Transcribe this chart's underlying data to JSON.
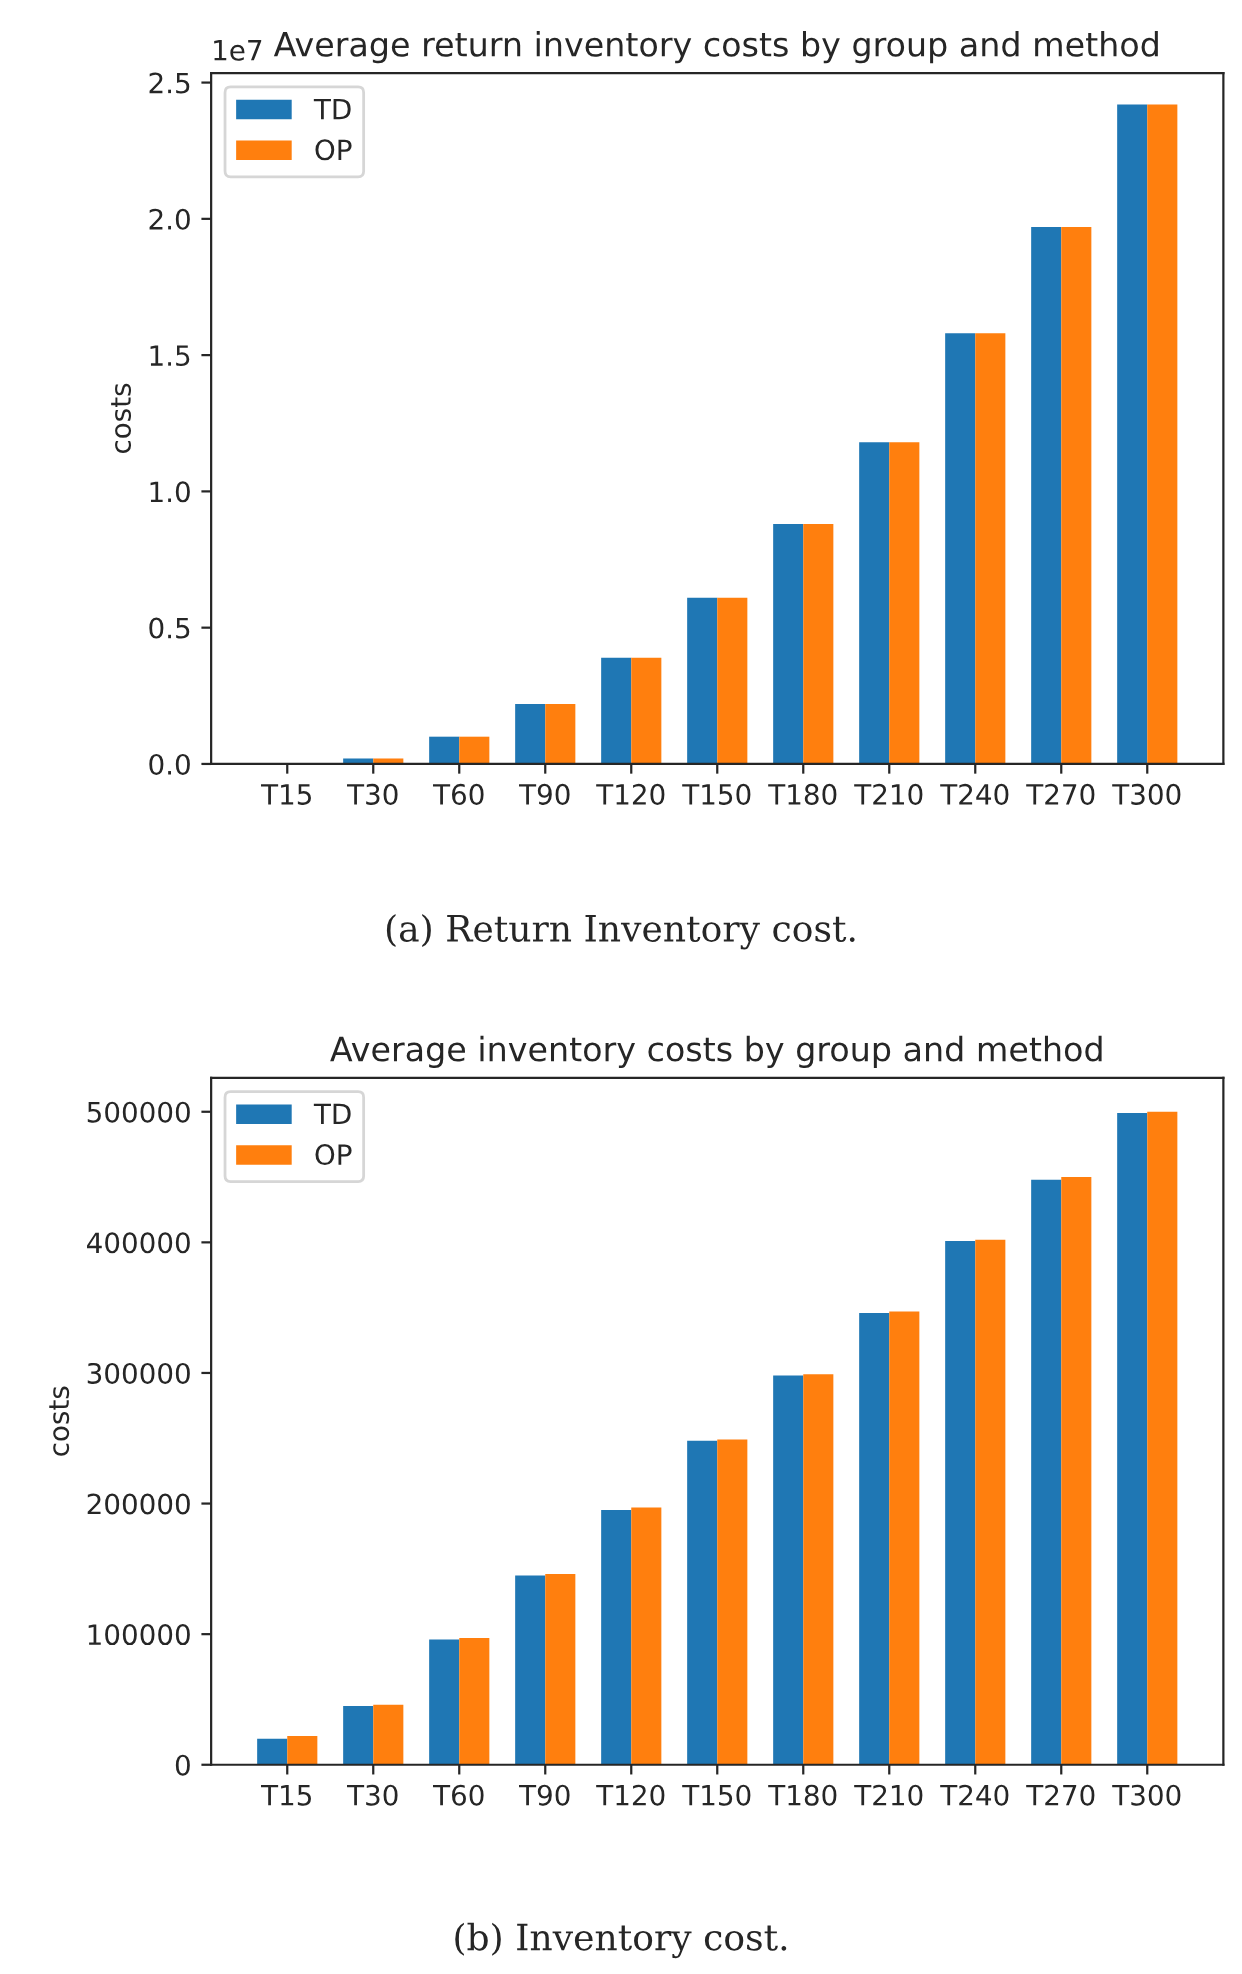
{
  "chart_data": [
    {
      "type": "bar",
      "title": "Average return inventory costs by group and method",
      "ylabel": "costs",
      "categories": [
        "T15",
        "T30",
        "T60",
        "T90",
        "T120",
        "T150",
        "T180",
        "T210",
        "T240",
        "T270",
        "T300"
      ],
      "series": [
        {
          "name": "TD",
          "color": "#1f77b4",
          "values": [
            0,
            0.02,
            0.1,
            0.22,
            0.39,
            0.61,
            0.88,
            1.18,
            1.58,
            1.97,
            2.42
          ]
        },
        {
          "name": "OP",
          "color": "#ff7f0e",
          "values": [
            0,
            0.02,
            0.1,
            0.22,
            0.39,
            0.61,
            0.88,
            1.18,
            1.58,
            1.97,
            2.42
          ]
        }
      ],
      "ylim": [
        0,
        2.535
      ],
      "yticks": [
        {
          "value": 0,
          "label": "0.0"
        },
        0.5,
        {
          "value": 1,
          "label": "1.0"
        },
        1.5,
        {
          "value": 2,
          "label": "2.0"
        },
        2.5
      ],
      "legend": "top left",
      "grid": false,
      "annotations": [
        "1e7",
        "(a) Return Inventory cost."
      ]
    },
    {
      "type": "bar",
      "title": "Average inventory costs by group and method",
      "ylabel": "costs",
      "categories": [
        "T15",
        "T30",
        "T60",
        "T90",
        "T120",
        "T150",
        "T180",
        "T210",
        "T240",
        "T270",
        "T300"
      ],
      "series": [
        {
          "name": "TD",
          "color": "#1f77b4",
          "values": [
            20000,
            45000,
            96000,
            145000,
            195000,
            248000,
            298000,
            346000,
            401000,
            448000,
            499000
          ]
        },
        {
          "name": "OP",
          "color": "#ff7f0e",
          "values": [
            22000,
            46000,
            97000,
            146000,
            197000,
            249000,
            299000,
            347000,
            402000,
            450000,
            500000
          ]
        }
      ],
      "ylim": [
        0,
        526000
      ],
      "yticks": [
        0,
        100000,
        200000,
        300000,
        400000,
        500000
      ],
      "legend": "top left",
      "grid": false,
      "annotations": [
        "(b) Inventory cost."
      ]
    }
  ]
}
